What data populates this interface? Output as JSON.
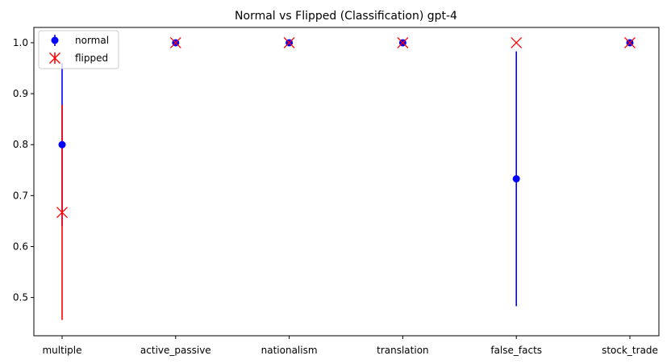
{
  "chart_data": {
    "type": "scatter",
    "title": "Normal vs Flipped (Classification) gpt-4",
    "xlabel": "",
    "ylabel": "",
    "categories": [
      "multiple",
      "active_passive",
      "nationalism",
      "translation",
      "false_facts",
      "stock_trade"
    ],
    "ylim": [
      0.425,
      1.03
    ],
    "yticks": [
      0.5,
      0.6,
      0.7,
      0.8,
      0.9,
      1.0
    ],
    "ytick_labels": [
      "0.5",
      "0.6",
      "0.7",
      "0.8",
      "0.9",
      "1.0"
    ],
    "grid": false,
    "legend_position": "top-left",
    "series": [
      {
        "name": "normal",
        "marker": "circle",
        "color": "#0000ff",
        "values": [
          0.8,
          1.0,
          1.0,
          1.0,
          0.733,
          1.0
        ],
        "error_low": [
          0.64,
          1.0,
          1.0,
          1.0,
          0.483,
          1.0
        ],
        "error_high": [
          0.96,
          1.0,
          1.0,
          1.0,
          0.983,
          1.0
        ]
      },
      {
        "name": "flipped",
        "marker": "x",
        "color": "#ff0000",
        "values": [
          0.667,
          1.0,
          1.0,
          1.0,
          1.0,
          1.0
        ],
        "error_low": [
          0.456,
          1.0,
          1.0,
          1.0,
          1.0,
          1.0
        ],
        "error_high": [
          0.878,
          1.0,
          1.0,
          1.0,
          1.0,
          1.0
        ]
      }
    ]
  }
}
